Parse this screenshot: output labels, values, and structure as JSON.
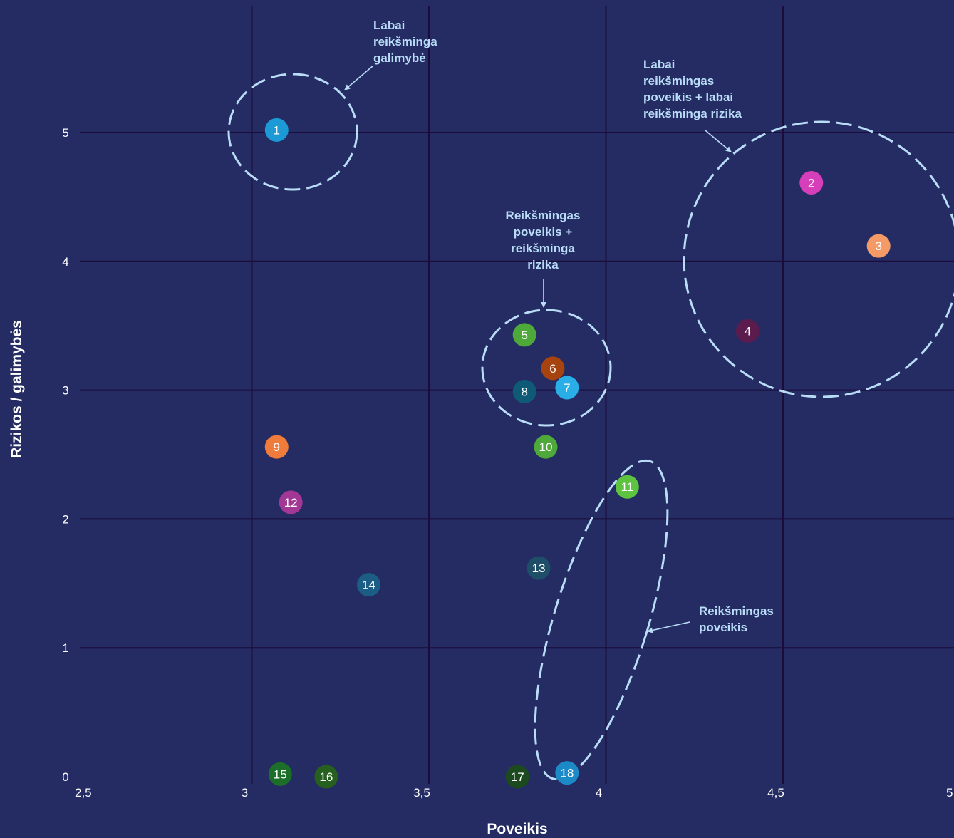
{
  "chart_data": {
    "type": "scatter",
    "xlabel": "Poveikis",
    "ylabel": "Rizikos / galimybės",
    "xlim": [
      2.5,
      5
    ],
    "ylim": [
      0,
      5
    ],
    "x_ticks": [
      "2,5",
      "3",
      "3,5",
      "4",
      "4,5",
      "5"
    ],
    "y_ticks": [
      "0",
      "1",
      "2",
      "3",
      "4",
      "5"
    ],
    "grid": true,
    "points": [
      {
        "label": "1",
        "x": 3.07,
        "y": 5.02,
        "color": "#1b9ad6"
      },
      {
        "label": "2",
        "x": 4.58,
        "y": 4.61,
        "color": "#d63fb9"
      },
      {
        "label": "3",
        "x": 4.77,
        "y": 4.12,
        "color": "#f39a67"
      },
      {
        "label": "4",
        "x": 4.4,
        "y": 3.46,
        "color": "#5b1b4d"
      },
      {
        "label": "5",
        "x": 3.77,
        "y": 3.43,
        "color": "#4ea93a"
      },
      {
        "label": "6",
        "x": 3.85,
        "y": 3.17,
        "color": "#a6430f"
      },
      {
        "label": "7",
        "x": 3.89,
        "y": 3.02,
        "color": "#2aaee8"
      },
      {
        "label": "8",
        "x": 3.77,
        "y": 2.99,
        "color": "#0f5a76"
      },
      {
        "label": "9",
        "x": 3.07,
        "y": 2.56,
        "color": "#ef7c3a"
      },
      {
        "label": "10",
        "x": 3.83,
        "y": 2.56,
        "color": "#4ea93a"
      },
      {
        "label": "11",
        "x": 4.06,
        "y": 2.25,
        "color": "#5ec440"
      },
      {
        "label": "12",
        "x": 3.11,
        "y": 2.13,
        "color": "#a33796"
      },
      {
        "label": "13",
        "x": 3.81,
        "y": 1.62,
        "color": "#1f4e68"
      },
      {
        "label": "14",
        "x": 3.33,
        "y": 1.49,
        "color": "#1c5d85"
      },
      {
        "label": "15",
        "x": 3.08,
        "y": 0.02,
        "color": "#1b6f28"
      },
      {
        "label": "16",
        "x": 3.21,
        "y": 0.0,
        "color": "#265f1e"
      },
      {
        "label": "17",
        "x": 3.75,
        "y": 0.0,
        "color": "#1c4a1e"
      },
      {
        "label": "18",
        "x": 3.89,
        "y": 0.03,
        "color": "#1d8ac8"
      }
    ],
    "annotations": [
      {
        "text": "Labai reikšminga galimybė"
      },
      {
        "text": "Labai reikšmingas poveikis + labai reikšminga rizika"
      },
      {
        "text": "Reikšmingas poveikis + reikšminga rizika"
      },
      {
        "text": "Reikšmingas poveikis"
      }
    ]
  },
  "annotation_lines": [
    [
      "Labai",
      "reikšminga",
      "galimybė"
    ],
    [
      "Labai",
      "reikšmingas",
      "poveikis + labai",
      "reikšminga rizika"
    ],
    [
      "Reikšmingas",
      "poveikis +",
      "reikšminga",
      "rizika"
    ],
    [
      "Reikšmingas",
      "poveikis"
    ]
  ],
  "colors": {
    "background": "#242c63",
    "grid": "#1b0c3c",
    "annotation": "#b9dcf7"
  }
}
